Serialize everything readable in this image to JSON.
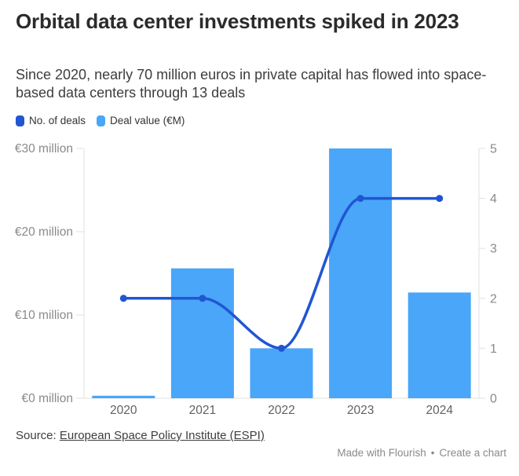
{
  "header": {
    "title": "Orbital data center investments spiked in 2023",
    "subtitle": "Since 2020, nearly 70 million euros in private capital has flowed into space-based data centers through 13 deals"
  },
  "legend": {
    "items": [
      {
        "label": "No. of deals",
        "color": "#2056d3"
      },
      {
        "label": "Deal value (€M)",
        "color": "#4aa6f8"
      }
    ]
  },
  "chart_data": {
    "type": "bar+line combo",
    "categories": [
      "2020",
      "2021",
      "2022",
      "2023",
      "2024"
    ],
    "series": [
      {
        "name": "Deal value (€M)",
        "type": "bar",
        "axis": "left",
        "color": "#4aa6f8",
        "values": [
          0.3,
          15.6,
          6.0,
          30.0,
          12.7
        ]
      },
      {
        "name": "No. of deals",
        "type": "line",
        "axis": "right",
        "color": "#2056d3",
        "values": [
          2,
          2,
          1,
          4,
          4
        ]
      }
    ],
    "left_axis": {
      "title": "",
      "range": [
        0,
        30
      ],
      "tick_values": [
        0,
        10,
        20,
        30
      ],
      "tick_labels": [
        "€0 million",
        "€10 million",
        "€20 million",
        "€30 million"
      ]
    },
    "right_axis": {
      "title": "",
      "range": [
        0,
        5
      ],
      "tick_values": [
        0,
        1,
        2,
        3,
        4,
        5
      ],
      "tick_labels": [
        "0",
        "1",
        "2",
        "3",
        "4",
        "5"
      ]
    },
    "grid": "off",
    "legend_position": "top-left",
    "colors": {
      "axis_line": "#e2e2e2",
      "tick_text": "#8a8a8a",
      "category_text": "#616161"
    }
  },
  "source": {
    "prefix": "Source: ",
    "link_text": "European Space Policy Institute (ESPI)"
  },
  "footer": {
    "made_with": "Made with Flourish",
    "separator": "•",
    "create": "Create a chart"
  }
}
